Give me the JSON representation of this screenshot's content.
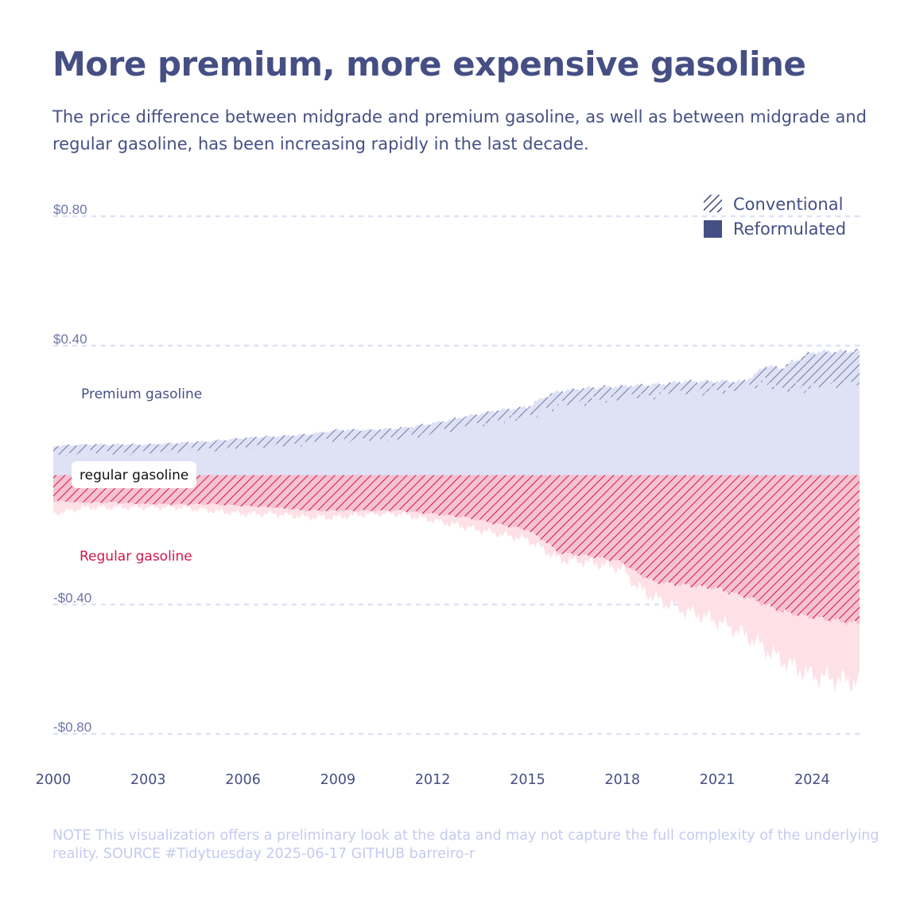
{
  "title": "More premium, more expensive gasoline",
  "subtitle": "The price difference between midgrade and premium gasoline, as well as between midgrade and regular gasoline, has been increasing rapidly in the last decade.",
  "caption": "NOTE This visualization offers a preliminary look at the data and may not capture the full complexity of the underlying reality. SOURCE #Tidytuesday 2025-06-17 GITHUB barreiro-r",
  "colors": {
    "premium": "#454f84",
    "premium_fill": "#dfe2f4",
    "regular": "#d1154e",
    "regular_fill": "#fde1e7",
    "grid": "#dde2f6"
  },
  "chart_data": {
    "type": "area",
    "xlim": [
      2000,
      2025.6
    ],
    "ylim": [
      -0.85,
      0.85
    ],
    "grid": "horizontal dashed",
    "legend_position": "top-right",
    "y_ticks": [
      {
        "value": 0.8,
        "label": "$0.80"
      },
      {
        "value": 0.4,
        "label": "$0.40"
      },
      {
        "value": -0.4,
        "label": "-$0.40"
      },
      {
        "value": -0.8,
        "label": "-$0.80"
      }
    ],
    "x_ticks": [
      {
        "value": 2000,
        "label": "2000"
      },
      {
        "value": 2003,
        "label": "2003"
      },
      {
        "value": 2006,
        "label": "2006"
      },
      {
        "value": 2009,
        "label": "2009"
      },
      {
        "value": 2012,
        "label": "2012"
      },
      {
        "value": 2015,
        "label": "2015"
      },
      {
        "value": 2018,
        "label": "2018"
      },
      {
        "value": 2021,
        "label": "2021"
      },
      {
        "value": 2024,
        "label": "2024"
      }
    ],
    "legend": [
      {
        "label": "Conventional",
        "pattern": "hatched"
      },
      {
        "label": "Reformulated",
        "pattern": "solid"
      }
    ],
    "annotations": {
      "premium": "Premium gasoline",
      "regular": "Regular gasoline",
      "baseline": "regular gasoline"
    },
    "series": [
      {
        "name": "Premium gasoline",
        "type": "Conventional",
        "x": [
          2000,
          2001,
          2002,
          2003,
          2004,
          2005,
          2006,
          2007,
          2008,
          2009,
          2010,
          2011,
          2012,
          2013,
          2014,
          2015,
          2015.5,
          2016,
          2017,
          2018,
          2019,
          2020,
          2021,
          2021.8,
          2022.2,
          2022.5,
          2023,
          2024,
          2025.5
        ],
        "values": [
          0.09,
          0.095,
          0.095,
          0.095,
          0.1,
          0.105,
          0.115,
          0.12,
          0.125,
          0.14,
          0.14,
          0.145,
          0.16,
          0.18,
          0.2,
          0.21,
          0.24,
          0.26,
          0.27,
          0.275,
          0.28,
          0.29,
          0.29,
          0.29,
          0.31,
          0.34,
          0.33,
          0.38,
          0.385
        ]
      },
      {
        "name": "Premium gasoline",
        "type": "Reformulated",
        "x": [
          2000,
          2001,
          2002,
          2003,
          2004,
          2005,
          2006,
          2007,
          2008,
          2009,
          2010,
          2011,
          2012,
          2013,
          2014,
          2015,
          2015.5,
          2016,
          2017,
          2018,
          2019,
          2020,
          2021,
          2021.8,
          2022.2,
          2022.5,
          2023,
          2024,
          2025.5
        ],
        "values": [
          0.06,
          0.07,
          0.07,
          0.07,
          0.075,
          0.08,
          0.085,
          0.09,
          0.1,
          0.11,
          0.11,
          0.115,
          0.13,
          0.15,
          0.17,
          0.18,
          0.2,
          0.22,
          0.23,
          0.24,
          0.25,
          0.26,
          0.26,
          0.27,
          0.28,
          0.29,
          0.27,
          0.27,
          0.29
        ]
      },
      {
        "name": "Regular gasoline",
        "type": "Conventional",
        "x": [
          2000,
          2001,
          2002,
          2003,
          2004,
          2005,
          2006,
          2007,
          2008,
          2009,
          2010,
          2011,
          2012,
          2013,
          2014,
          2015,
          2015.5,
          2016,
          2017,
          2018,
          2018.4,
          2019,
          2020,
          2021,
          2022,
          2023,
          2024,
          2025.5
        ],
        "values": [
          -0.08,
          -0.085,
          -0.085,
          -0.09,
          -0.09,
          -0.09,
          -0.095,
          -0.1,
          -0.11,
          -0.11,
          -0.11,
          -0.11,
          -0.12,
          -0.13,
          -0.15,
          -0.17,
          -0.2,
          -0.24,
          -0.25,
          -0.27,
          -0.3,
          -0.33,
          -0.34,
          -0.35,
          -0.38,
          -0.42,
          -0.44,
          -0.46
        ]
      },
      {
        "name": "Regular gasoline",
        "type": "Reformulated",
        "x": [
          2000,
          2001,
          2002,
          2003,
          2004,
          2005,
          2006,
          2007,
          2008,
          2009,
          2010,
          2011,
          2012,
          2013,
          2014,
          2015,
          2015.5,
          2016,
          2017,
          2018,
          2018.4,
          2019,
          2020,
          2021,
          2022,
          2023,
          2024,
          2025.5
        ],
        "values": [
          -0.12,
          -0.1,
          -0.1,
          -0.1,
          -0.1,
          -0.11,
          -0.12,
          -0.12,
          -0.13,
          -0.13,
          -0.12,
          -0.12,
          -0.14,
          -0.16,
          -0.18,
          -0.2,
          -0.23,
          -0.26,
          -0.27,
          -0.29,
          -0.34,
          -0.38,
          -0.42,
          -0.45,
          -0.5,
          -0.57,
          -0.62,
          -0.64
        ]
      }
    ]
  }
}
